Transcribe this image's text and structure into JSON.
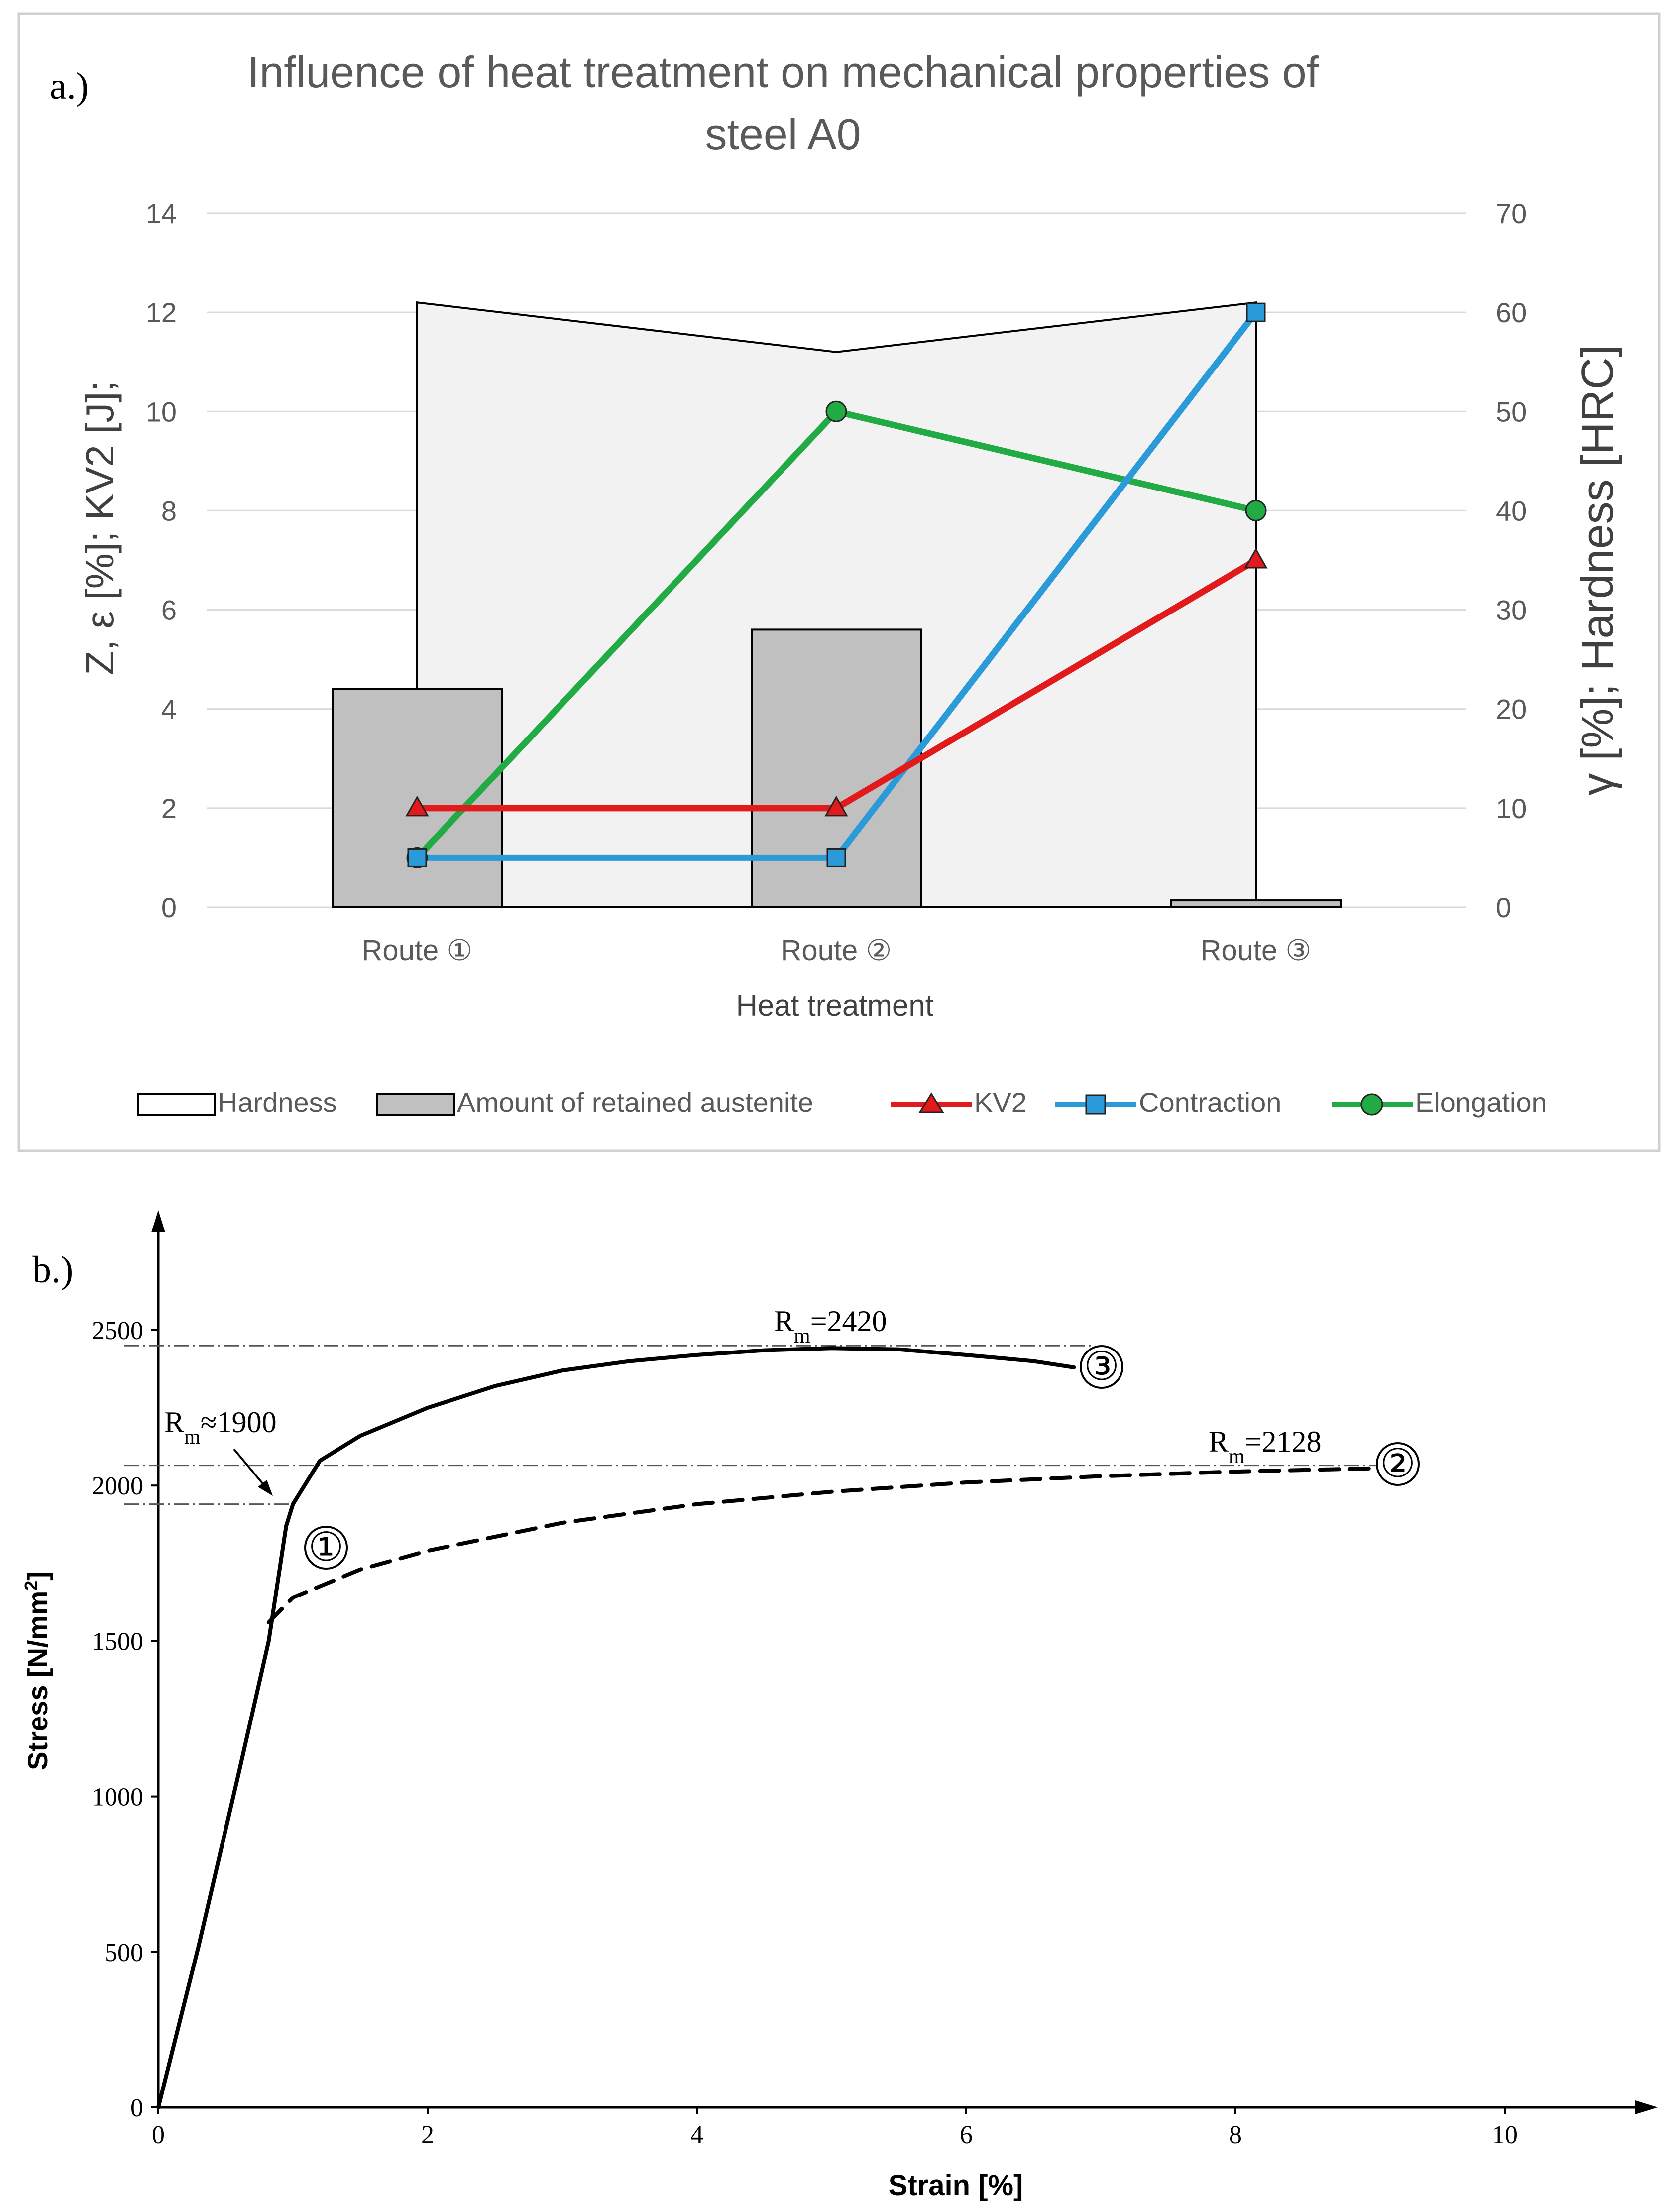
{
  "chart_data": [
    {
      "panel_label": "a.)",
      "type": "bar+line",
      "title_line1": "Influence of heat treatment on mechanical properties of",
      "title_line2": "steel A0",
      "xlabel": "Heat treatment",
      "ylabel_left": "Z, ε [%]; KV2 [J];",
      "ylabel_right": "γ [%]; Hardness [HRC]",
      "categories": [
        "Route ①",
        "Route ②",
        "Route ③"
      ],
      "ylim_left": [
        0,
        14
      ],
      "ylim_right": [
        0,
        70
      ],
      "yticks_left": [
        "0",
        "2",
        "4",
        "6",
        "8",
        "10",
        "12",
        "14"
      ],
      "yticks_right": [
        "0",
        "10",
        "20",
        "30",
        "40",
        "50",
        "60",
        "70"
      ],
      "grid": true,
      "legend_position": "bottom",
      "series": [
        {
          "name": "Hardness",
          "kind": "area",
          "axis": "right",
          "values": [
            61,
            56,
            61
          ],
          "color": "#f2f2f2"
        },
        {
          "name": "Amount of retained austenite",
          "kind": "bar",
          "axis": "right",
          "values": [
            22,
            28,
            0.7
          ],
          "color": "#c0c0c0"
        },
        {
          "name": "KV2",
          "kind": "line",
          "axis": "left",
          "marker": "triangle",
          "values": [
            2,
            2,
            7
          ],
          "color": "#e31a1c"
        },
        {
          "name": "Contraction",
          "kind": "line",
          "axis": "left",
          "marker": "square",
          "values": [
            1,
            1,
            12
          ],
          "color": "#2b9ad8"
        },
        {
          "name": "Elongation",
          "kind": "line",
          "axis": "left",
          "marker": "circle",
          "values": [
            1,
            10,
            8
          ],
          "color": "#22aa44"
        }
      ]
    },
    {
      "panel_label": "b.)",
      "type": "line",
      "xlabel": "Strain [%]",
      "ylabel": "Stress [N/mm²]",
      "ylabel_main": "Stress [N/mm",
      "ylabel_sup": "2",
      "ylabel_end": "]",
      "xlim": [
        0,
        11
      ],
      "ylim": [
        0,
        2800
      ],
      "xticks": [
        "0",
        "2",
        "4",
        "6",
        "8",
        "10"
      ],
      "yticks": [
        "0",
        "500",
        "1000",
        "1500",
        "2000",
        "2500"
      ],
      "reference_lines": [
        2450,
        2065,
        1940
      ],
      "series": [
        {
          "name": "①",
          "style": "solid",
          "points": [
            [
              0,
              0
            ],
            [
              0.3,
              520
            ],
            [
              0.6,
              1080
            ],
            [
              0.82,
              1500
            ],
            [
              0.95,
              1870
            ],
            [
              1.0,
              1940
            ]
          ]
        },
        {
          "name": "③",
          "style": "solid",
          "points": [
            [
              1.0,
              1940
            ],
            [
              1.2,
              2080
            ],
            [
              1.5,
              2160
            ],
            [
              2.0,
              2250
            ],
            [
              2.5,
              2320
            ],
            [
              3.0,
              2370
            ],
            [
              3.5,
              2400
            ],
            [
              4.0,
              2420
            ],
            [
              4.5,
              2435
            ],
            [
              5.0,
              2442
            ],
            [
              5.5,
              2438
            ],
            [
              6.0,
              2420
            ],
            [
              6.5,
              2400
            ],
            [
              6.8,
              2380
            ]
          ]
        },
        {
          "name": "②",
          "style": "dashed",
          "points": [
            [
              0.82,
              1560
            ],
            [
              1.0,
              1640
            ],
            [
              1.5,
              1730
            ],
            [
              2.0,
              1790
            ],
            [
              3.0,
              1880
            ],
            [
              4.0,
              1940
            ],
            [
              5.0,
              1980
            ],
            [
              6.0,
              2010
            ],
            [
              7.0,
              2030
            ],
            [
              8.0,
              2045
            ],
            [
              9.0,
              2055
            ],
            [
              9.2,
              2058
            ]
          ]
        }
      ],
      "annotations": {
        "rm3": {
          "R": "R",
          "sub": "m",
          "value": "=2420"
        },
        "rm2": {
          "R": "R",
          "sub": "m",
          "value": "=2128"
        },
        "rm1": {
          "R": "R",
          "sub": "m",
          "value": "≈1900"
        },
        "curve_labels": [
          "①",
          "②",
          "③"
        ]
      }
    }
  ]
}
